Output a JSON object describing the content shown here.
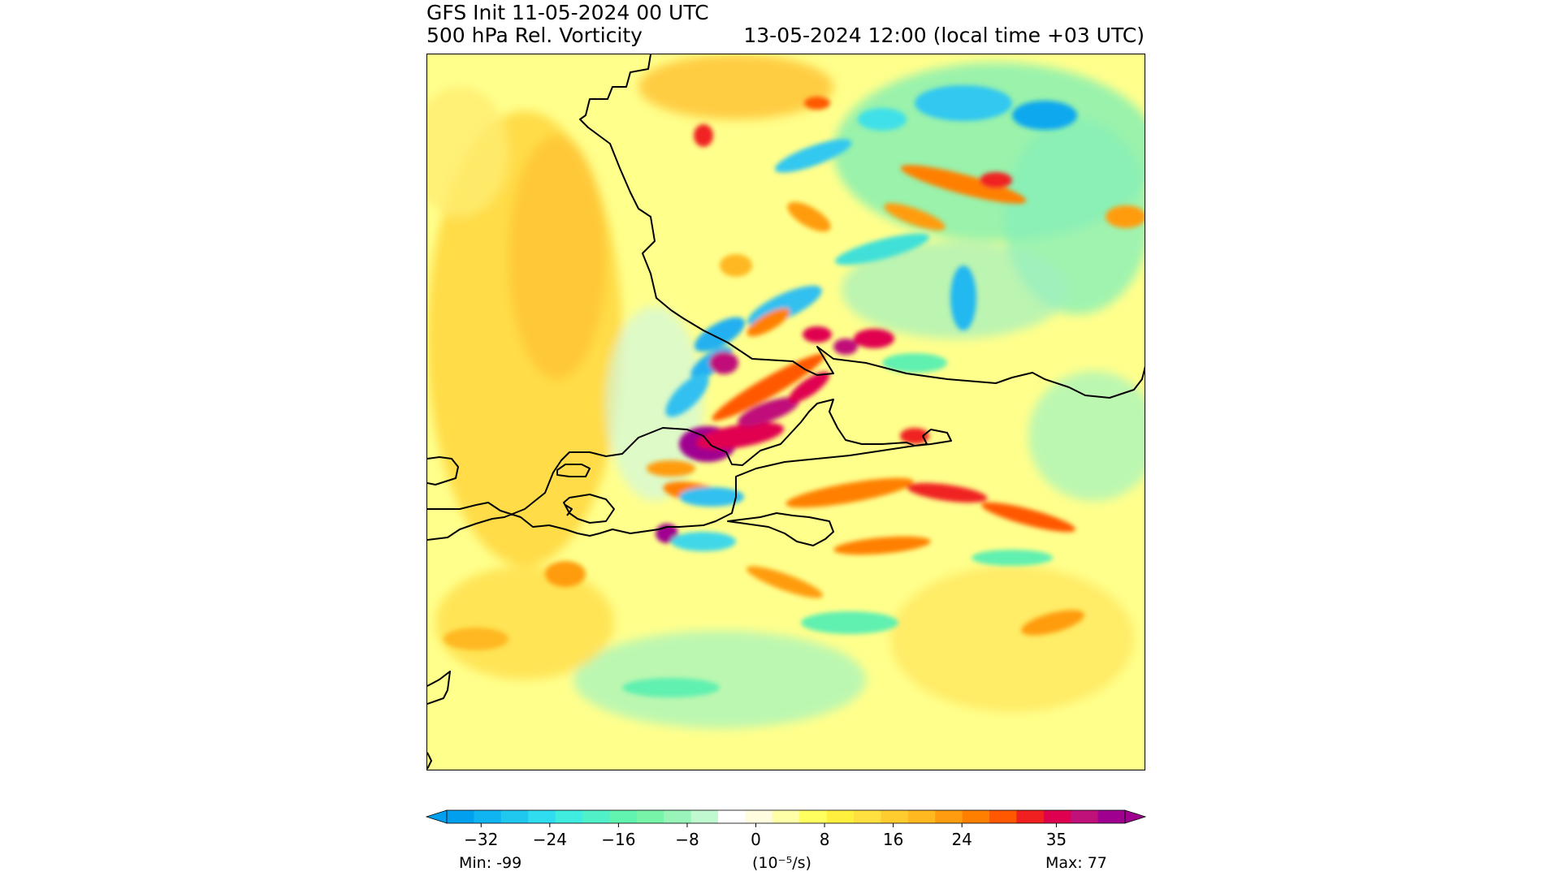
{
  "header": {
    "init": "GFS Init 11-05-2024 00 UTC",
    "field": "500 hPa Rel. Vorticity",
    "valid": "13-05-2024 12:00 (local time +03 UTC)"
  },
  "colorbar": {
    "ticks": [
      "−32",
      "−24",
      "−16",
      "−8",
      "0",
      "8",
      "16",
      "24",
      "35"
    ],
    "tick_values": [
      -32,
      -24,
      -16,
      -8,
      0,
      8,
      16,
      24,
      35
    ],
    "range": [
      -36,
      43
    ],
    "unit": "(10⁻⁵/s)",
    "min_label": "Min: -99",
    "max_label": "Max: 77",
    "colors": [
      "#00a0ee",
      "#10b4f0",
      "#20c8f0",
      "#30dcf0",
      "#40ece0",
      "#50f0c8",
      "#60f4b0",
      "#78f4a8",
      "#98f4b8",
      "#c0f8d0",
      "#ffffff",
      "#fffce0",
      "#ffffa8",
      "#ffff60",
      "#fff040",
      "#ffe040",
      "#ffcc30",
      "#ffb820",
      "#ff9c10",
      "#ff8000",
      "#ff5800",
      "#f02020",
      "#e00050",
      "#c0107a",
      "#a00090"
    ]
  },
  "map": {
    "background": "#ffff88",
    "coast_color": "#000000"
  }
}
